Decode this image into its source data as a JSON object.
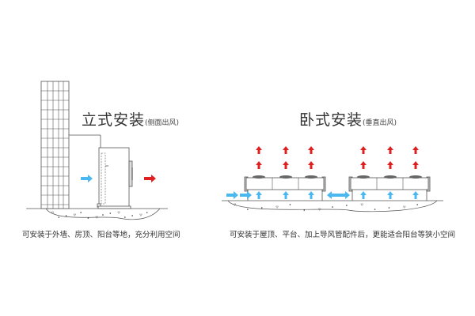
{
  "vertical": {
    "title": "立式安装",
    "subtitle": "(侧面出风)",
    "caption": "可安装于外墙、房顶、阳台等地，充分利用空间"
  },
  "horizontal": {
    "title": "卧式安装",
    "subtitle": "(垂直出风)",
    "caption": "可安装于屋顶、平台、加上导风管配件后，更能适合阳台等狭小空间"
  },
  "colors": {
    "intake_arrow": "#4ab8ee",
    "exhaust_arrow": "#e02020",
    "line": "#555555"
  }
}
